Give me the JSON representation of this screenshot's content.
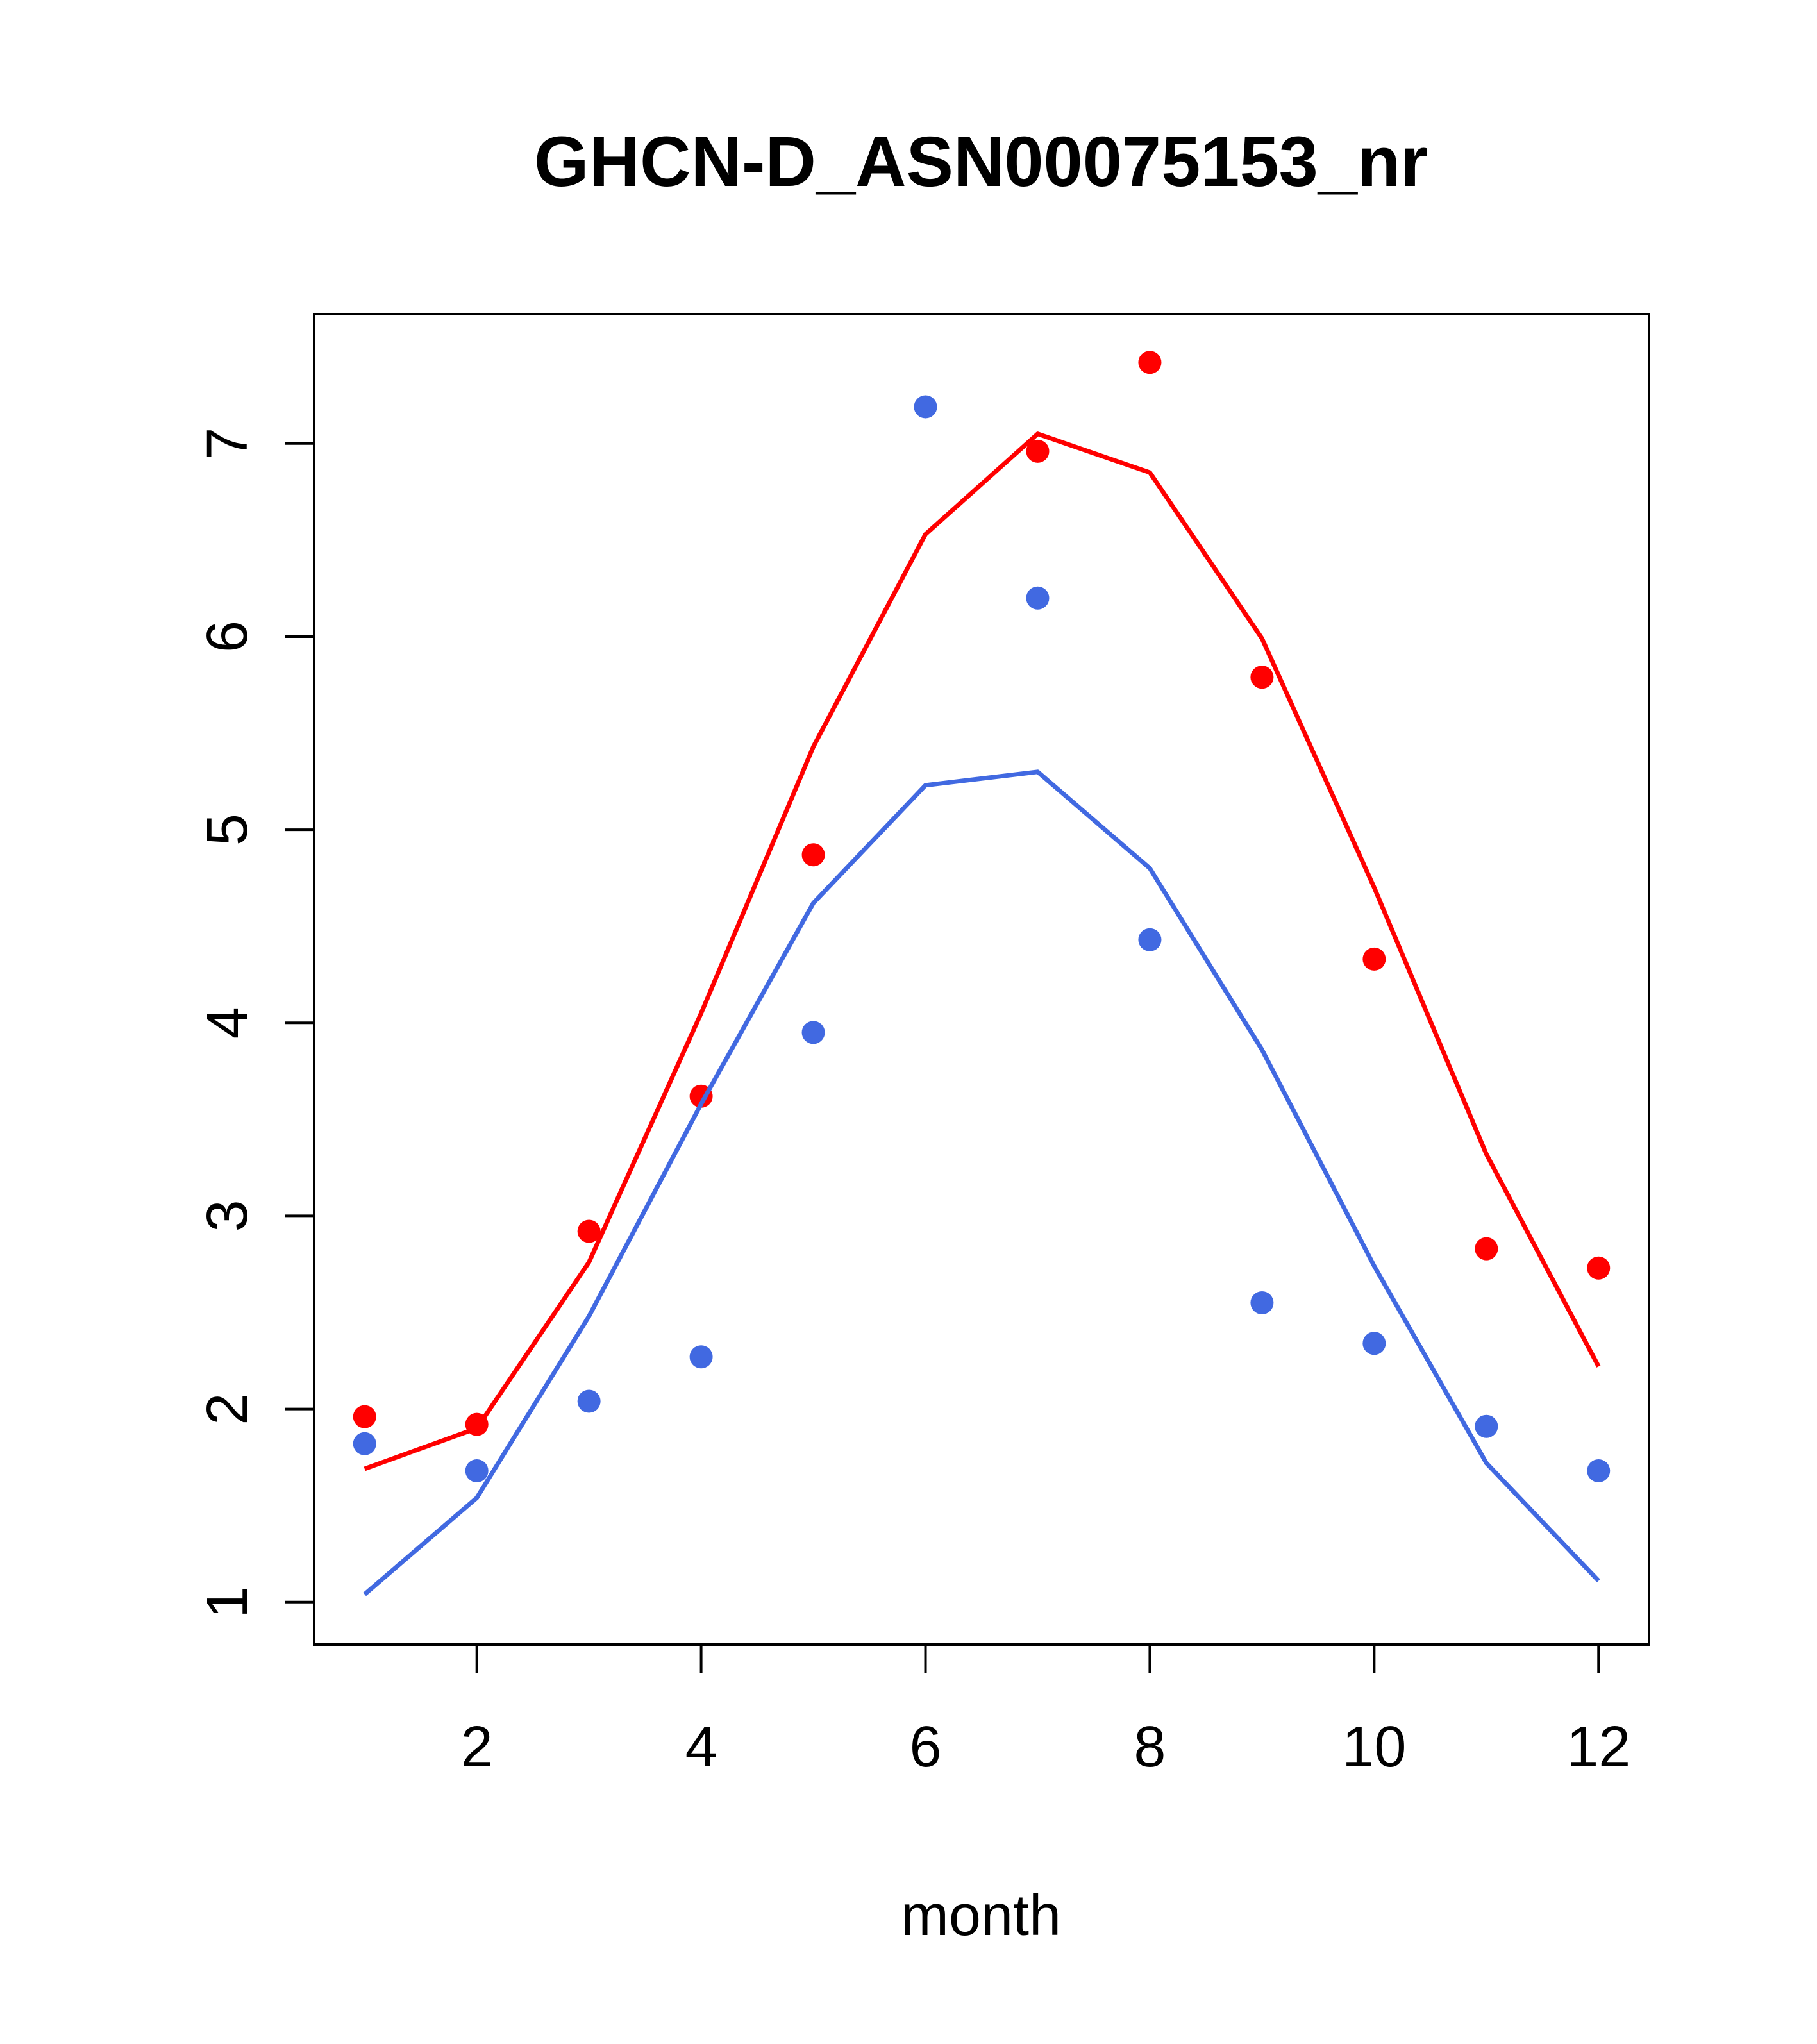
{
  "chart_data": {
    "type": "line",
    "title": "GHCN-D_ASN00075153_nr",
    "xlabel": "month",
    "ylabel": "",
    "xlim": [
      0.55,
      12.45
    ],
    "ylim": [
      0.78,
      7.67
    ],
    "x_ticks": [
      2,
      4,
      6,
      8,
      10,
      12
    ],
    "y_ticks": [
      1,
      2,
      3,
      4,
      5,
      6,
      7
    ],
    "grid": false,
    "legend": "none",
    "x": [
      1,
      2,
      3,
      4,
      5,
      6,
      7,
      8,
      9,
      10,
      11,
      12
    ],
    "series": [
      {
        "color": "#ff0000",
        "line": [
          1.69,
          1.9,
          2.76,
          4.05,
          5.43,
          6.53,
          7.05,
          6.85,
          5.99,
          4.7,
          3.32,
          2.22
        ],
        "points": [
          1.96,
          1.92,
          2.92,
          3.62,
          4.87,
          null,
          6.96,
          7.42,
          5.79,
          4.33,
          2.83,
          2.73
        ]
      },
      {
        "color": "#4169e1",
        "line": [
          1.04,
          1.54,
          2.48,
          3.58,
          4.62,
          5.23,
          5.3,
          4.8,
          3.86,
          2.74,
          1.72,
          1.11
        ],
        "points": [
          1.82,
          1.68,
          2.04,
          2.27,
          3.95,
          7.19,
          6.2,
          4.43,
          2.55,
          2.34,
          1.91,
          1.68
        ]
      }
    ]
  }
}
